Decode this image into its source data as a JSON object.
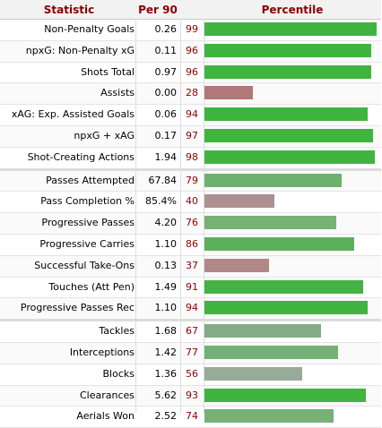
{
  "header": {
    "statistic": "Statistic",
    "per90": "Per 90",
    "percentile": "Percentile"
  },
  "chart_data": {
    "type": "table",
    "columns": [
      "Statistic",
      "Per 90",
      "Percentile"
    ],
    "percentile_max": 100,
    "groups": [
      [
        {
          "stat": "Non-Penalty Goals",
          "per90": "0.26",
          "percentile": 99,
          "color": "#3fb53f"
        },
        {
          "stat": "npxG: Non-Penalty xG",
          "per90": "0.11",
          "percentile": 96,
          "color": "#3fb53f"
        },
        {
          "stat": "Shots Total",
          "per90": "0.97",
          "percentile": 96,
          "color": "#3fb53f"
        },
        {
          "stat": "Assists",
          "per90": "0.00",
          "percentile": 28,
          "color": "#b07878"
        },
        {
          "stat": "xAG: Exp. Assisted Goals",
          "per90": "0.06",
          "percentile": 94,
          "color": "#3fb53f"
        },
        {
          "stat": "npxG + xAG",
          "per90": "0.17",
          "percentile": 97,
          "color": "#3fb53f"
        },
        {
          "stat": "Shot-Creating Actions",
          "per90": "1.94",
          "percentile": 98,
          "color": "#3fb53f"
        }
      ],
      [
        {
          "stat": "Passes Attempted",
          "per90": "67.84",
          "percentile": 79,
          "color": "#6eb06e"
        },
        {
          "stat": "Pass Completion %",
          "per90": "85.4%",
          "percentile": 40,
          "color": "#ad9090"
        },
        {
          "stat": "Progressive Passes",
          "per90": "4.20",
          "percentile": 76,
          "color": "#76b176"
        },
        {
          "stat": "Progressive Carries",
          "per90": "1.10",
          "percentile": 86,
          "color": "#5cb05c"
        },
        {
          "stat": "Successful Take-Ons",
          "per90": "0.13",
          "percentile": 37,
          "color": "#b08888"
        },
        {
          "stat": "Touches (Att Pen)",
          "per90": "1.49",
          "percentile": 91,
          "color": "#45b245"
        },
        {
          "stat": "Progressive Passes Rec",
          "per90": "1.10",
          "percentile": 94,
          "color": "#3fb53f"
        }
      ],
      [
        {
          "stat": "Tackles",
          "per90": "1.68",
          "percentile": 67,
          "color": "#84ac84"
        },
        {
          "stat": "Interceptions",
          "per90": "1.42",
          "percentile": 77,
          "color": "#74b074"
        },
        {
          "stat": "Blocks",
          "per90": "1.36",
          "percentile": 56,
          "color": "#98aa98"
        },
        {
          "stat": "Clearances",
          "per90": "5.62",
          "percentile": 93,
          "color": "#3fb53f"
        },
        {
          "stat": "Aerials Won",
          "per90": "2.52",
          "percentile": 74,
          "color": "#78b078"
        }
      ]
    ]
  }
}
